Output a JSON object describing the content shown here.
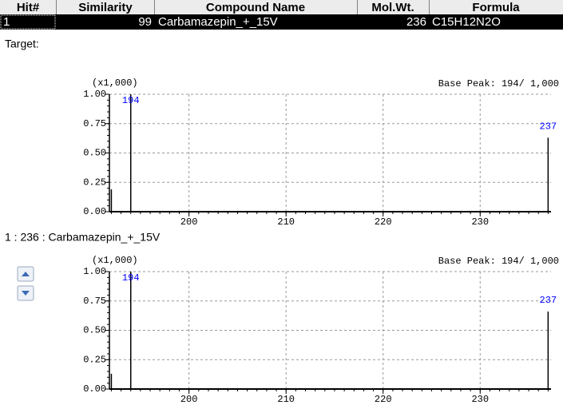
{
  "table": {
    "headers": [
      "Hit#",
      "Similarity",
      "Compound Name",
      "Mol.Wt.",
      "Formula"
    ],
    "rows": [
      [
        "1",
        "99",
        "Carbamazepin_+_15V",
        "236",
        "C15H12N2O"
      ]
    ]
  },
  "labels": {
    "target": "Target:",
    "library": "1 : 236 : Carbamazepin_+_15V"
  },
  "chart_data": [
    {
      "type": "stem",
      "scale_note": "(x1,000)",
      "base_peak": "Base Peak: 194/  1,000",
      "x": [
        192,
        194,
        237
      ],
      "values": [
        0.19,
        1.0,
        0.63
      ],
      "labeled": [
        1,
        2
      ],
      "color": "#000000",
      "label_color": "#0000ff",
      "grid": true,
      "xlim": [
        191.8,
        237.3
      ],
      "xticks": [
        200,
        210,
        220,
        230
      ],
      "ylim": [
        0,
        1
      ],
      "yticks": [
        {
          "value": 0,
          "label": "0.00"
        },
        {
          "value": 0.25,
          "label": "0.25"
        },
        {
          "value": 0.5,
          "label": "0.50"
        },
        {
          "value": 0.75,
          "label": "0.75"
        },
        {
          "value": 1,
          "label": "1.00"
        }
      ]
    },
    {
      "type": "stem",
      "scale_note": "(x1,000)",
      "base_peak": "Base Peak: 194/  1,000",
      "x": [
        192,
        194,
        237
      ],
      "values": [
        0.13,
        1.0,
        0.66
      ],
      "labeled": [
        1,
        2
      ],
      "color": "#000000",
      "label_color": "#0000ff",
      "grid": true,
      "xlim": [
        191.8,
        237.3
      ],
      "xticks": [
        200,
        210,
        220,
        230
      ],
      "ylim": [
        0,
        1
      ],
      "yticks": [
        {
          "value": 0,
          "label": "0.00"
        },
        {
          "value": 0.25,
          "label": "0.25"
        },
        {
          "value": 0.5,
          "label": "0.50"
        },
        {
          "value": 0.75,
          "label": "0.75"
        },
        {
          "value": 1,
          "label": "1.00"
        }
      ]
    }
  ]
}
